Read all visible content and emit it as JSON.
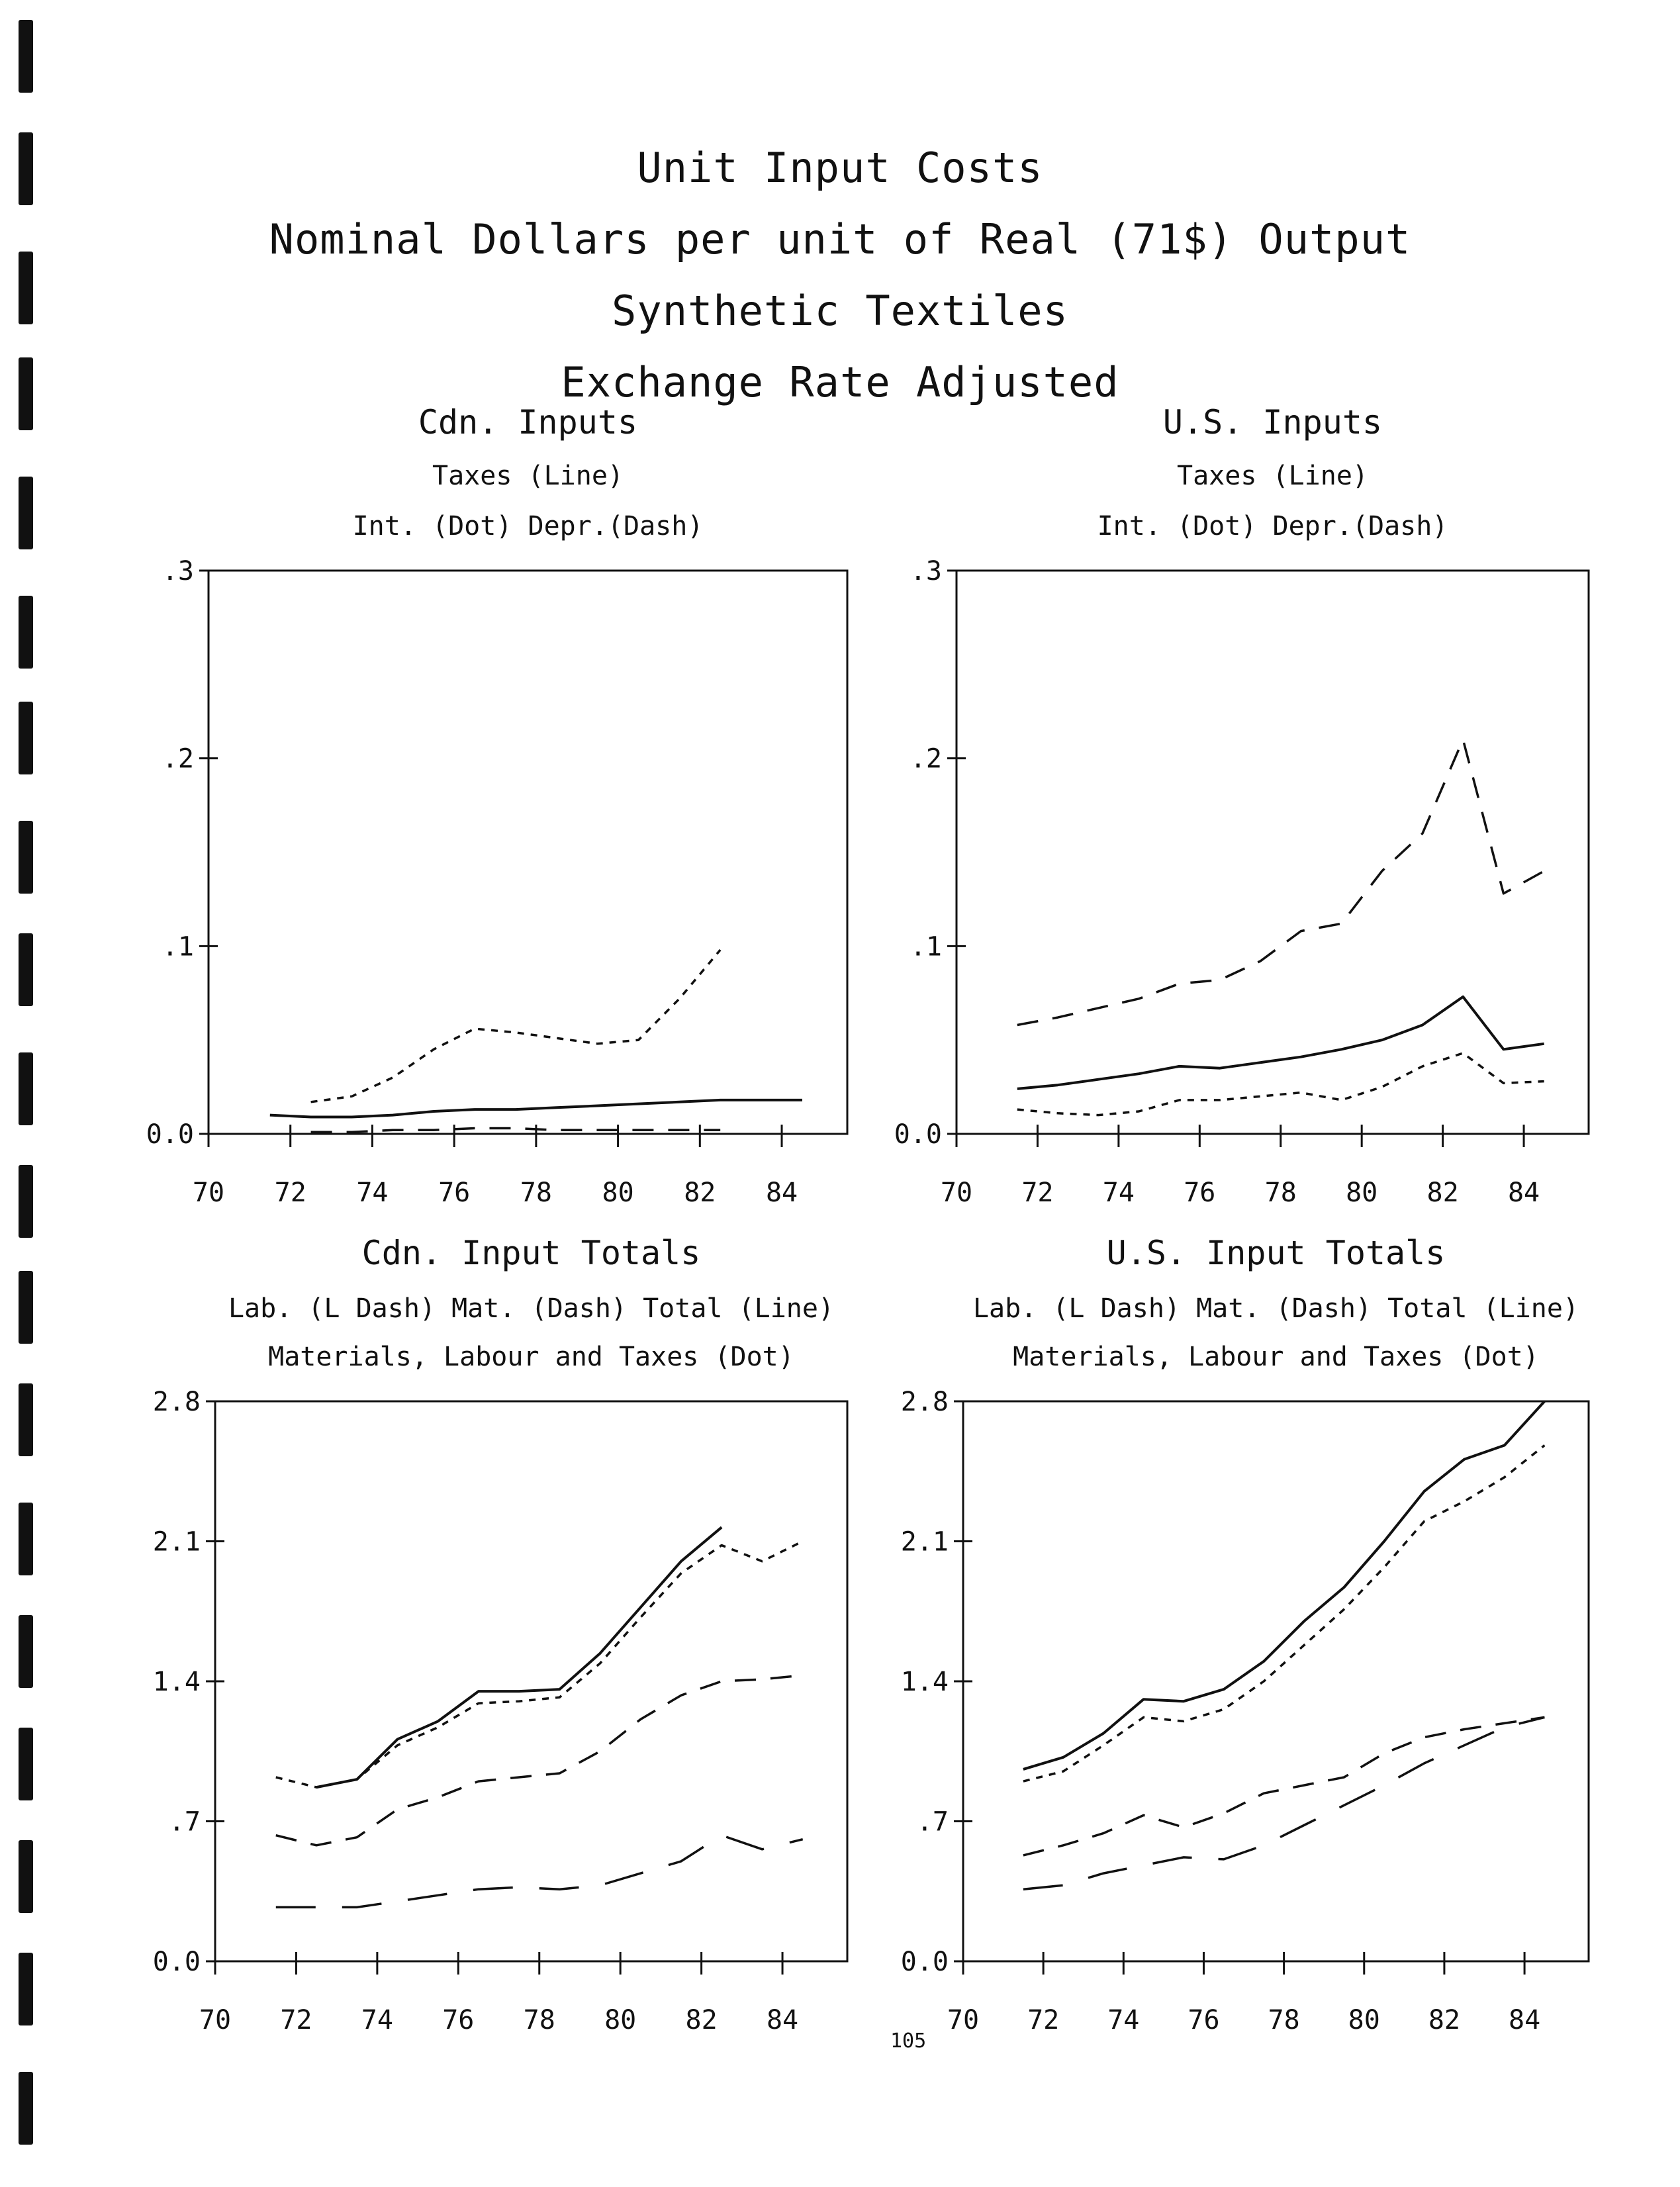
{
  "page": {
    "title_lines": [
      "Unit Input Costs",
      "Nominal Dollars per unit of Real (71$) Output",
      "Synthetic Textiles",
      "Exchange Rate Adjusted"
    ],
    "page_number": "105",
    "colors": {
      "ink": "#111111",
      "paper": "#ffffff"
    }
  },
  "chart_data": [
    {
      "type": "line",
      "title": "Cdn. Inputs",
      "subtitle_lines": [
        "Taxes (Line)",
        "Int. (Dot)     Depr.(Dash)"
      ],
      "x_ticks": [
        "70",
        "72",
        "74",
        "76",
        "78",
        "80",
        "82",
        "84"
      ],
      "y_ticks": [
        "0.0",
        ".1",
        ".2",
        ".3"
      ],
      "xlim": [
        70,
        85.6
      ],
      "ylim": [
        0,
        0.3
      ],
      "series": [
        {
          "name": "Taxes (Line)",
          "style": "solid",
          "x": [
            71.5,
            72.5,
            73.5,
            74.5,
            75.5,
            76.5,
            77.5,
            78.5,
            79.5,
            80.5,
            81.5,
            82.5,
            83.5,
            84.5
          ],
          "y": [
            0.01,
            0.009,
            0.009,
            0.01,
            0.012,
            0.013,
            0.013,
            0.014,
            0.015,
            0.016,
            0.017,
            0.018,
            0.018,
            0.018
          ]
        },
        {
          "name": "Int. (Dot)",
          "style": "dot",
          "x": [
            72.5,
            73.5,
            74.5,
            75.5,
            76.5,
            77.5,
            78.5,
            79.5,
            80.5,
            81.5,
            82.5
          ],
          "y": [
            0.017,
            0.02,
            0.03,
            0.045,
            0.056,
            0.054,
            0.051,
            0.048,
            0.05,
            0.072,
            0.098
          ]
        },
        {
          "name": "Depr.(Dash)",
          "style": "dash",
          "x": [
            72.5,
            73.5,
            74.5,
            75.5,
            76.5,
            77.5,
            78.5,
            79.5,
            80.5,
            81.5,
            82.5
          ],
          "y": [
            0.001,
            0.001,
            0.002,
            0.002,
            0.003,
            0.003,
            0.002,
            0.002,
            0.002,
            0.002,
            0.002
          ]
        }
      ]
    },
    {
      "type": "line",
      "title": "U.S. Inputs",
      "subtitle_lines": [
        "Taxes (Line)",
        "Int. (Dot)     Depr.(Dash)"
      ],
      "x_ticks": [
        "70",
        "72",
        "74",
        "76",
        "78",
        "80",
        "82",
        "84"
      ],
      "y_ticks": [
        "0.0",
        ".1",
        ".2",
        ".3"
      ],
      "xlim": [
        70,
        85.6
      ],
      "ylim": [
        0,
        0.3
      ],
      "series": [
        {
          "name": "Taxes (Line)",
          "style": "solid",
          "x": [
            71.5,
            72.5,
            73.5,
            74.5,
            75.5,
            76.5,
            77.5,
            78.5,
            79.5,
            80.5,
            81.5,
            82.5,
            83.5,
            84.5
          ],
          "y": [
            0.024,
            0.026,
            0.029,
            0.032,
            0.036,
            0.035,
            0.038,
            0.041,
            0.045,
            0.05,
            0.058,
            0.073,
            0.045,
            0.048
          ]
        },
        {
          "name": "Int. (Dot)",
          "style": "dot",
          "x": [
            71.5,
            72.5,
            73.5,
            74.5,
            75.5,
            76.5,
            77.5,
            78.5,
            79.5,
            80.5,
            81.5,
            82.5,
            83.5,
            84.5
          ],
          "y": [
            0.013,
            0.011,
            0.01,
            0.012,
            0.018,
            0.018,
            0.02,
            0.022,
            0.018,
            0.025,
            0.036,
            0.043,
            0.027,
            0.028
          ]
        },
        {
          "name": "Depr.(Dash)",
          "style": "dash",
          "x": [
            71.5,
            72.5,
            73.5,
            74.5,
            75.5,
            76.5,
            77.5,
            78.5,
            79.5,
            80.5,
            81.5,
            82.5,
            83.5,
            84.5
          ],
          "y": [
            0.058,
            0.062,
            0.067,
            0.072,
            0.08,
            0.082,
            0.092,
            0.108,
            0.112,
            0.14,
            0.16,
            0.21,
            0.128,
            0.14
          ]
        }
      ]
    },
    {
      "type": "line",
      "title": "Cdn. Input Totals",
      "subtitle_lines": [
        "Lab. (L Dash)     Mat. (Dash)     Total (Line)",
        "Materials, Labour and Taxes (Dot)"
      ],
      "x_ticks": [
        "70",
        "72",
        "74",
        "76",
        "78",
        "80",
        "82",
        "84"
      ],
      "y_ticks": [
        "0.0",
        ".7",
        "1.4",
        "2.1",
        "2.8"
      ],
      "xlim": [
        70,
        85.6
      ],
      "ylim": [
        0,
        2.8
      ],
      "series": [
        {
          "name": "Total (Line)",
          "style": "solid",
          "x": [
            72.5,
            73.5,
            74.5,
            75.5,
            76.5,
            77.5,
            78.5,
            79.5,
            80.5,
            81.5,
            82.5
          ],
          "y": [
            0.87,
            0.91,
            1.11,
            1.2,
            1.35,
            1.35,
            1.36,
            1.54,
            1.77,
            2.0,
            2.17
          ]
        },
        {
          "name": "Materials, Labour and Taxes (Dot)",
          "style": "dot",
          "x": [
            71.5,
            72.5,
            73.5,
            74.5,
            75.5,
            76.5,
            77.5,
            78.5,
            79.5,
            80.5,
            81.5,
            82.5,
            83.5,
            84.5
          ],
          "y": [
            0.92,
            0.87,
            0.91,
            1.08,
            1.17,
            1.29,
            1.3,
            1.32,
            1.49,
            1.72,
            1.94,
            2.08,
            2.0,
            2.1
          ]
        },
        {
          "name": "Mat. (Dash)",
          "style": "dash",
          "x": [
            71.5,
            72.5,
            73.5,
            74.5,
            75.5,
            76.5,
            77.5,
            78.5,
            79.5,
            80.5,
            81.5,
            82.5,
            83.5,
            84.5
          ],
          "y": [
            0.63,
            0.58,
            0.62,
            0.76,
            0.82,
            0.9,
            0.92,
            0.94,
            1.05,
            1.21,
            1.33,
            1.4,
            1.41,
            1.43
          ]
        },
        {
          "name": "Lab. (L Dash)",
          "style": "longdash",
          "x": [
            71.5,
            72.5,
            73.5,
            74.5,
            75.5,
            76.5,
            77.5,
            78.5,
            79.5,
            80.5,
            81.5,
            82.5,
            83.5,
            84.5
          ],
          "y": [
            0.27,
            0.27,
            0.27,
            0.3,
            0.33,
            0.36,
            0.37,
            0.36,
            0.38,
            0.44,
            0.5,
            0.63,
            0.56,
            0.61
          ]
        }
      ]
    },
    {
      "type": "line",
      "title": "U.S. Input Totals",
      "subtitle_lines": [
        "Lab. (L Dash)     Mat. (Dash)     Total (Line)",
        "Materials, Labour and Taxes (Dot)"
      ],
      "x_ticks": [
        "70",
        "72",
        "74",
        "76",
        "78",
        "80",
        "82",
        "84"
      ],
      "y_ticks": [
        "0.0",
        ".7",
        "1.4",
        "2.1",
        "2.8"
      ],
      "xlim": [
        70,
        85.6
      ],
      "ylim": [
        0,
        2.8
      ],
      "series": [
        {
          "name": "Total (Line)",
          "style": "solid",
          "x": [
            71.5,
            72.5,
            73.5,
            74.5,
            75.5,
            76.5,
            77.5,
            78.5,
            79.5,
            80.5,
            81.5,
            82.5,
            83.5,
            84.5
          ],
          "y": [
            0.96,
            1.02,
            1.14,
            1.31,
            1.3,
            1.36,
            1.5,
            1.7,
            1.87,
            2.1,
            2.35,
            2.51,
            2.58,
            2.8
          ]
        },
        {
          "name": "Materials, Labour and Taxes (Dot)",
          "style": "dot",
          "x": [
            71.5,
            72.5,
            73.5,
            74.5,
            75.5,
            76.5,
            77.5,
            78.5,
            79.5,
            80.5,
            81.5,
            82.5,
            83.5,
            84.5
          ],
          "y": [
            0.9,
            0.95,
            1.08,
            1.22,
            1.2,
            1.26,
            1.4,
            1.58,
            1.76,
            1.97,
            2.2,
            2.3,
            2.42,
            2.58
          ]
        },
        {
          "name": "Mat. (Dash)",
          "style": "dash",
          "x": [
            71.5,
            72.5,
            73.5,
            74.5,
            75.5,
            76.5,
            77.5,
            78.5,
            79.5,
            80.5,
            81.5,
            82.5,
            83.5,
            84.5
          ],
          "y": [
            0.53,
            0.58,
            0.64,
            0.73,
            0.67,
            0.74,
            0.84,
            0.88,
            0.92,
            1.04,
            1.12,
            1.16,
            1.19,
            1.22
          ]
        },
        {
          "name": "Lab. (L Dash)",
          "style": "longdash",
          "x": [
            71.5,
            72.5,
            73.5,
            74.5,
            75.5,
            76.5,
            77.5,
            78.5,
            79.5,
            80.5,
            81.5,
            82.5,
            83.5,
            84.5
          ],
          "y": [
            0.36,
            0.38,
            0.44,
            0.48,
            0.52,
            0.51,
            0.58,
            0.68,
            0.78,
            0.88,
            0.99,
            1.08,
            1.17,
            1.22
          ]
        }
      ]
    }
  ]
}
